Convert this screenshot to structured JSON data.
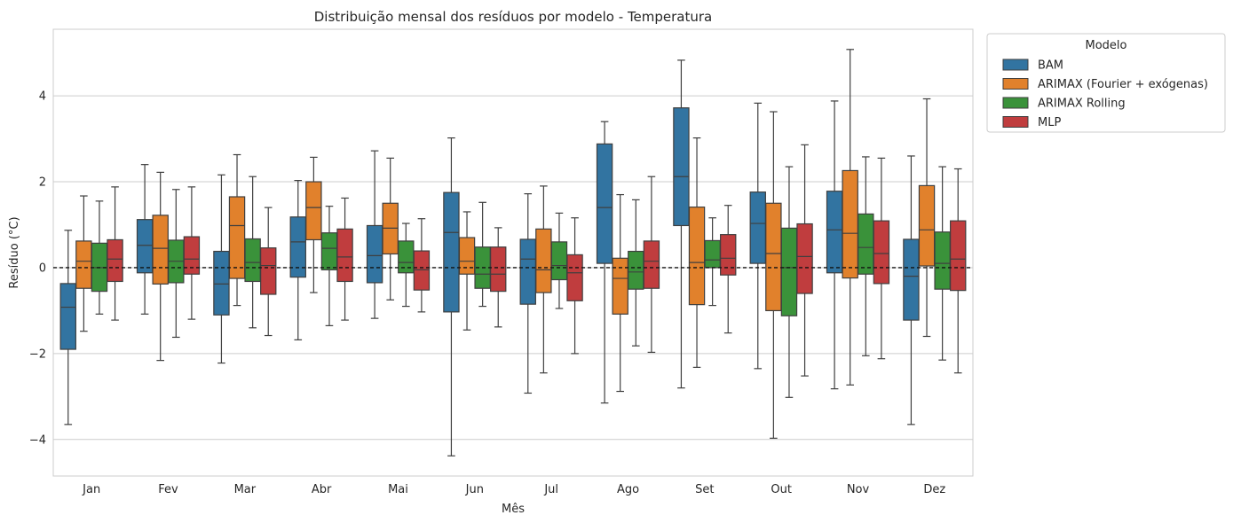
{
  "chart_data": {
    "type": "boxplot",
    "title": "Distribuição mensal dos resíduos por modelo - Temperatura",
    "xlabel": "Mês",
    "ylabel": "Resíduo (°C)",
    "ylim": [
      -4.85,
      5.55
    ],
    "yticks": [
      -4,
      -2,
      0,
      2,
      4
    ],
    "grid": "horizontal",
    "reference_line": 0,
    "legend_title": "Modelo",
    "legend_position": "outside-top-right",
    "categories": [
      "Jan",
      "Fev",
      "Mar",
      "Abr",
      "Mai",
      "Jun",
      "Jul",
      "Ago",
      "Set",
      "Out",
      "Nov",
      "Dez"
    ],
    "series": [
      {
        "name": "BAM",
        "color": "#3274a1",
        "boxes": [
          {
            "min": -3.65,
            "q1": -1.9,
            "median": -0.92,
            "q3": -0.37,
            "max": 0.87
          },
          {
            "min": -1.08,
            "q1": -0.12,
            "median": 0.52,
            "q3": 1.12,
            "max": 2.4
          },
          {
            "min": -2.22,
            "q1": -1.1,
            "median": -0.38,
            "q3": 0.38,
            "max": 2.16
          },
          {
            "min": -1.68,
            "q1": -0.22,
            "median": 0.6,
            "q3": 1.18,
            "max": 2.03
          },
          {
            "min": -1.18,
            "q1": -0.35,
            "median": 0.28,
            "q3": 0.98,
            "max": 2.72
          },
          {
            "min": -4.38,
            "q1": -1.03,
            "median": 0.82,
            "q3": 1.75,
            "max": 3.02
          },
          {
            "min": -2.92,
            "q1": -0.85,
            "median": 0.2,
            "q3": 0.66,
            "max": 1.72
          },
          {
            "min": -3.15,
            "q1": 0.1,
            "median": 1.4,
            "q3": 2.88,
            "max": 3.4
          },
          {
            "min": -2.8,
            "q1": 0.98,
            "median": 2.12,
            "q3": 3.72,
            "max": 4.83
          },
          {
            "min": -2.35,
            "q1": 0.1,
            "median": 1.03,
            "q3": 1.76,
            "max": 3.83
          },
          {
            "min": -2.82,
            "q1": -0.12,
            "median": 0.88,
            "q3": 1.78,
            "max": 3.88
          },
          {
            "min": -3.65,
            "q1": -1.22,
            "median": -0.2,
            "q3": 0.66,
            "max": 2.6
          }
        ]
      },
      {
        "name": "ARIMAX (Fourier + exógenas)",
        "color": "#e1812c",
        "boxes": [
          {
            "min": -1.48,
            "q1": -0.48,
            "median": 0.15,
            "q3": 0.62,
            "max": 1.67
          },
          {
            "min": -2.16,
            "q1": -0.38,
            "median": 0.45,
            "q3": 1.22,
            "max": 2.22
          },
          {
            "min": -0.88,
            "q1": -0.25,
            "median": 0.98,
            "q3": 1.65,
            "max": 2.63
          },
          {
            "min": -0.58,
            "q1": 0.65,
            "median": 1.4,
            "q3": 2.0,
            "max": 2.57
          },
          {
            "min": -0.75,
            "q1": 0.32,
            "median": 0.92,
            "q3": 1.5,
            "max": 2.55
          },
          {
            "min": -1.45,
            "q1": -0.15,
            "median": 0.15,
            "q3": 0.7,
            "max": 1.3
          },
          {
            "min": -2.45,
            "q1": -0.58,
            "median": -0.05,
            "q3": 0.9,
            "max": 1.9
          },
          {
            "min": -2.88,
            "q1": -1.08,
            "median": -0.25,
            "q3": 0.22,
            "max": 1.7
          },
          {
            "min": -2.32,
            "q1": -0.86,
            "median": 0.12,
            "q3": 1.41,
            "max": 3.02
          },
          {
            "min": -3.97,
            "q1": -1.0,
            "median": 0.33,
            "q3": 1.5,
            "max": 3.63
          },
          {
            "min": -2.73,
            "q1": -0.24,
            "median": 0.8,
            "q3": 2.26,
            "max": 5.08
          },
          {
            "min": -1.6,
            "q1": 0.04,
            "median": 0.88,
            "q3": 1.91,
            "max": 3.93
          }
        ]
      },
      {
        "name": "ARIMAX Rolling",
        "color": "#3a923a",
        "boxes": [
          {
            "min": -1.08,
            "q1": -0.55,
            "median": 0.0,
            "q3": 0.57,
            "max": 1.55
          },
          {
            "min": -1.62,
            "q1": -0.35,
            "median": 0.15,
            "q3": 0.64,
            "max": 1.82
          },
          {
            "min": -1.4,
            "q1": -0.32,
            "median": 0.12,
            "q3": 0.67,
            "max": 2.12
          },
          {
            "min": -1.35,
            "q1": -0.05,
            "median": 0.45,
            "q3": 0.81,
            "max": 1.43
          },
          {
            "min": -0.9,
            "q1": -0.12,
            "median": 0.12,
            "q3": 0.62,
            "max": 1.03
          },
          {
            "min": -0.9,
            "q1": -0.48,
            "median": -0.15,
            "q3": 0.48,
            "max": 1.52
          },
          {
            "min": -0.95,
            "q1": -0.28,
            "median": 0.05,
            "q3": 0.6,
            "max": 1.27
          },
          {
            "min": -1.82,
            "q1": -0.5,
            "median": -0.1,
            "q3": 0.38,
            "max": 1.58
          },
          {
            "min": -0.88,
            "q1": 0.0,
            "median": 0.18,
            "q3": 0.63,
            "max": 1.16
          },
          {
            "min": -3.02,
            "q1": -1.12,
            "median": 0.0,
            "q3": 0.92,
            "max": 2.35
          },
          {
            "min": -2.05,
            "q1": -0.15,
            "median": 0.47,
            "q3": 1.25,
            "max": 2.58
          },
          {
            "min": -2.15,
            "q1": -0.5,
            "median": 0.1,
            "q3": 0.83,
            "max": 2.35
          }
        ]
      },
      {
        "name": "MLP",
        "color": "#c03d3e",
        "boxes": [
          {
            "min": -1.22,
            "q1": -0.32,
            "median": 0.2,
            "q3": 0.65,
            "max": 1.88
          },
          {
            "min": -1.2,
            "q1": -0.15,
            "median": 0.2,
            "q3": 0.72,
            "max": 1.88
          },
          {
            "min": -1.58,
            "q1": -0.62,
            "median": 0.05,
            "q3": 0.46,
            "max": 1.4
          },
          {
            "min": -1.22,
            "q1": -0.32,
            "median": 0.25,
            "q3": 0.9,
            "max": 1.62
          },
          {
            "min": -1.03,
            "q1": -0.52,
            "median": -0.05,
            "q3": 0.39,
            "max": 1.14
          },
          {
            "min": -1.38,
            "q1": -0.55,
            "median": -0.15,
            "q3": 0.48,
            "max": 0.93
          },
          {
            "min": -2.0,
            "q1": -0.77,
            "median": -0.12,
            "q3": 0.3,
            "max": 1.16
          },
          {
            "min": -1.97,
            "q1": -0.48,
            "median": 0.15,
            "q3": 0.62,
            "max": 2.12
          },
          {
            "min": -1.52,
            "q1": -0.17,
            "median": 0.22,
            "q3": 0.77,
            "max": 1.45
          },
          {
            "min": -2.52,
            "q1": -0.6,
            "median": 0.26,
            "q3": 1.02,
            "max": 2.86
          },
          {
            "min": -2.12,
            "q1": -0.37,
            "median": 0.33,
            "q3": 1.09,
            "max": 2.55
          },
          {
            "min": -2.45,
            "q1": -0.53,
            "median": 0.2,
            "q3": 1.09,
            "max": 2.3
          }
        ]
      }
    ]
  }
}
